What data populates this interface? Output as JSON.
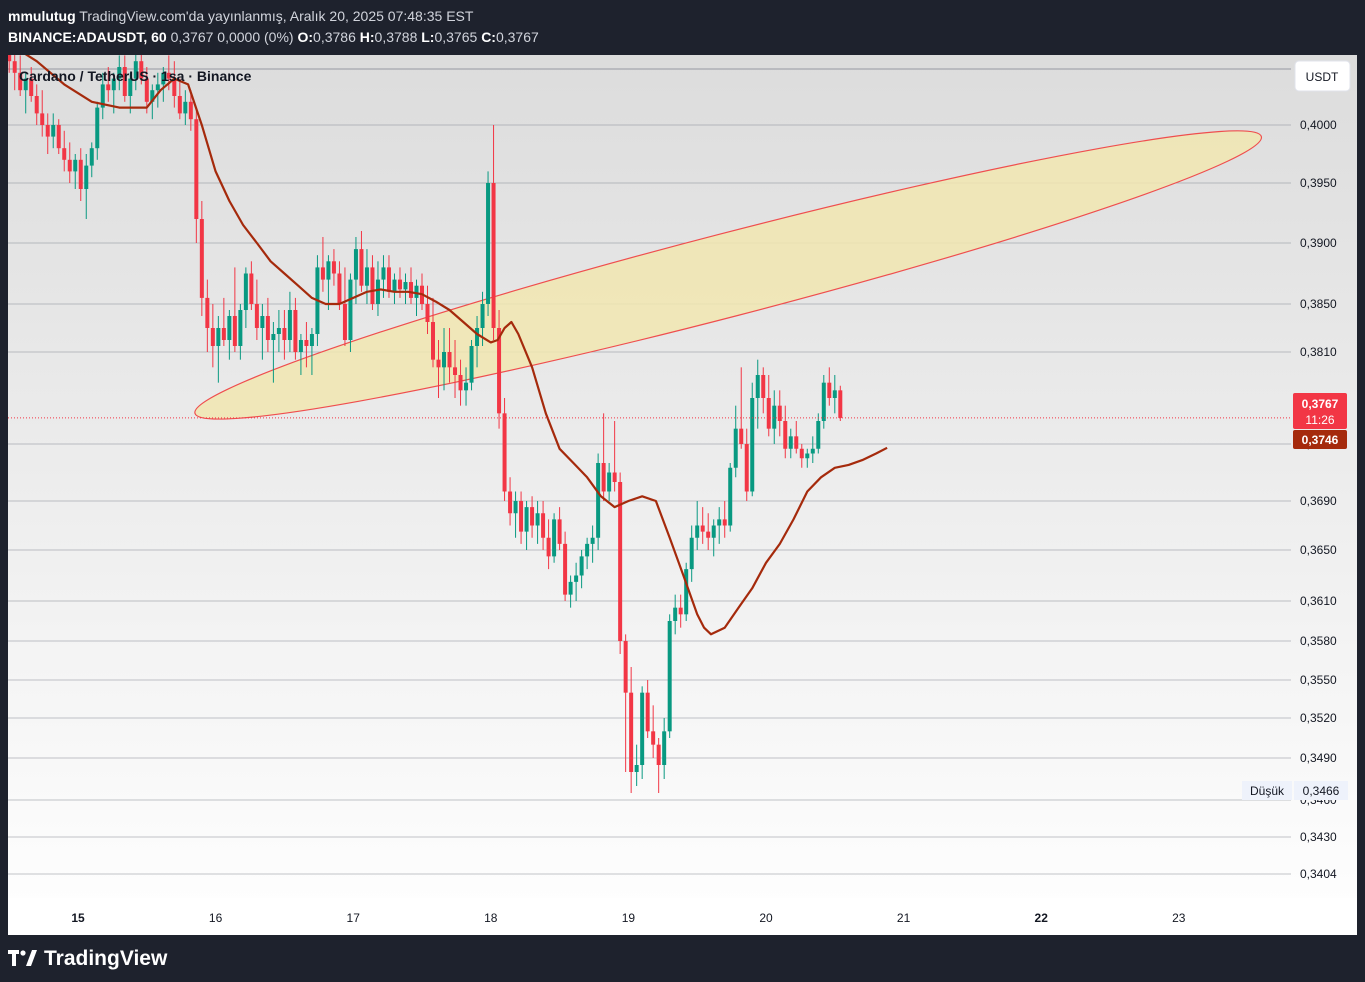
{
  "header": {
    "author": "mmulutug",
    "published": "TradingView.com'da yayınlanmış, Aralık 20, 2025 07:48:35 EST",
    "symbol": "BINANCE:ADAUSDT, 60",
    "last": "0,3767",
    "change": "0,0000 (0%)",
    "o_label": "O:",
    "o": "0,3786",
    "h_label": "H:",
    "h": "0,3788",
    "l_label": "L:",
    "l": "0,3765",
    "c_label": "C:",
    "c": "0,3767"
  },
  "chart_title": "Cardano / TetherUS · 1sa · Binance",
  "currency_button": "USDT",
  "footer": {
    "brand": "TradingView"
  },
  "colors": {
    "up": "#089981",
    "down": "#f23645",
    "ma": "#a52a0c",
    "ellipse_fill": "#f1e6b0",
    "ellipse_stroke": "#ef4e4e"
  },
  "badges": {
    "price": "0,3767",
    "countdown": "11:26",
    "ma": "0,3746",
    "low_label": "Düşük",
    "low_value": "0,3466"
  },
  "chart_data": {
    "type": "candlestick",
    "title": "Cardano / TetherUS · 1sa · Binance",
    "x_ticks": [
      {
        "label": "15",
        "day": 15,
        "bold": true
      },
      {
        "label": "16",
        "day": 16,
        "bold": false
      },
      {
        "label": "17",
        "day": 17,
        "bold": false
      },
      {
        "label": "18",
        "day": 18,
        "bold": false
      },
      {
        "label": "19",
        "day": 19,
        "bold": false
      },
      {
        "label": "20",
        "day": 20,
        "bold": false
      },
      {
        "label": "21",
        "day": 21,
        "bold": false
      },
      {
        "label": "22",
        "day": 22,
        "bold": true
      },
      {
        "label": "23",
        "day": 23,
        "bold": false
      }
    ],
    "y_ticks": [
      {
        "label": "0,4000",
        "value": 0.4
      },
      {
        "label": "0,3950",
        "value": 0.395
      },
      {
        "label": "0,3900",
        "value": 0.39
      },
      {
        "label": "0,3850",
        "value": 0.385
      },
      {
        "label": "0,3810",
        "value": 0.381
      },
      {
        "label": "0,3750",
        "value": 0.375
      },
      {
        "label": "0,3690",
        "value": 0.369
      },
      {
        "label": "0,3650",
        "value": 0.365
      },
      {
        "label": "0,3610",
        "value": 0.361
      },
      {
        "label": "0,3580",
        "value": 0.358
      },
      {
        "label": "0,3550",
        "value": 0.355
      },
      {
        "label": "0,3520",
        "value": 0.352
      },
      {
        "label": "0,3490",
        "value": 0.349
      },
      {
        "label": "0,3460",
        "value": 0.346
      },
      {
        "label": "0,3430",
        "value": 0.343
      },
      {
        "label": "0,3404",
        "value": 0.3404
      }
    ],
    "current_price": 0.3767,
    "low_price": 0.3466,
    "ma_current": 0.3746,
    "ellipse": {
      "day_left": 15.85,
      "value_left": 0.377,
      "day_right": 23.6,
      "value_right": 0.399,
      "half_width_value": 0.0014
    },
    "candles": [
      [
        14.5,
        0.4065,
        0.408,
        0.4045,
        0.4055
      ],
      [
        14.54,
        0.4055,
        0.407,
        0.403,
        0.4045
      ],
      [
        14.58,
        0.4045,
        0.406,
        0.4025,
        0.403
      ],
      [
        14.62,
        0.403,
        0.4045,
        0.401,
        0.404
      ],
      [
        14.66,
        0.404,
        0.405,
        0.402,
        0.4025
      ],
      [
        14.7,
        0.4025,
        0.4035,
        0.4,
        0.401
      ],
      [
        14.74,
        0.401,
        0.403,
        0.399,
        0.4
      ],
      [
        14.78,
        0.4,
        0.401,
        0.3975,
        0.399
      ],
      [
        14.82,
        0.399,
        0.401,
        0.398,
        0.4
      ],
      [
        14.86,
        0.4,
        0.4005,
        0.3975,
        0.398
      ],
      [
        14.9,
        0.398,
        0.3995,
        0.396,
        0.397
      ],
      [
        14.94,
        0.397,
        0.3985,
        0.395,
        0.396
      ],
      [
        14.98,
        0.396,
        0.3975,
        0.3945,
        0.397
      ],
      [
        15.02,
        0.397,
        0.398,
        0.3935,
        0.3945
      ],
      [
        15.06,
        0.3945,
        0.3975,
        0.392,
        0.3965
      ],
      [
        15.1,
        0.3965,
        0.3985,
        0.3955,
        0.398
      ],
      [
        15.14,
        0.398,
        0.402,
        0.397,
        0.4015
      ],
      [
        15.18,
        0.4015,
        0.4045,
        0.4005,
        0.4035
      ],
      [
        15.22,
        0.4035,
        0.405,
        0.402,
        0.403
      ],
      [
        15.26,
        0.403,
        0.4045,
        0.401,
        0.404
      ],
      [
        15.3,
        0.404,
        0.406,
        0.403,
        0.405
      ],
      [
        15.34,
        0.405,
        0.406,
        0.402,
        0.4025
      ],
      [
        15.38,
        0.4025,
        0.4045,
        0.401,
        0.404
      ],
      [
        15.42,
        0.404,
        0.4065,
        0.403,
        0.4055
      ],
      [
        15.46,
        0.4055,
        0.4065,
        0.4035,
        0.404
      ],
      [
        15.5,
        0.404,
        0.405,
        0.401,
        0.402
      ],
      [
        15.54,
        0.402,
        0.4035,
        0.4005,
        0.403
      ],
      [
        15.58,
        0.403,
        0.4045,
        0.4015,
        0.4035
      ],
      [
        15.62,
        0.4035,
        0.405,
        0.402,
        0.4045
      ],
      [
        15.66,
        0.4045,
        0.406,
        0.403,
        0.404
      ],
      [
        15.7,
        0.404,
        0.4055,
        0.4015,
        0.4025
      ],
      [
        15.74,
        0.4025,
        0.404,
        0.4005,
        0.401
      ],
      [
        15.78,
        0.401,
        0.403,
        0.4,
        0.402
      ],
      [
        15.82,
        0.402,
        0.403,
        0.3995,
        0.4005
      ],
      [
        15.86,
        0.4005,
        0.4015,
        0.39,
        0.392
      ],
      [
        15.9,
        0.392,
        0.3935,
        0.384,
        0.3855
      ],
      [
        15.94,
        0.3855,
        0.387,
        0.381,
        0.383
      ],
      [
        15.98,
        0.383,
        0.385,
        0.38,
        0.3815
      ],
      [
        16.02,
        0.3815,
        0.384,
        0.379,
        0.383
      ],
      [
        16.06,
        0.383,
        0.3855,
        0.3815,
        0.382
      ],
      [
        16.1,
        0.382,
        0.3845,
        0.3805,
        0.384
      ],
      [
        16.14,
        0.384,
        0.388,
        0.381,
        0.3815
      ],
      [
        16.18,
        0.3815,
        0.385,
        0.3805,
        0.3845
      ],
      [
        16.22,
        0.3845,
        0.388,
        0.383,
        0.3875
      ],
      [
        16.26,
        0.3875,
        0.3885,
        0.3845,
        0.385
      ],
      [
        16.3,
        0.385,
        0.387,
        0.382,
        0.383
      ],
      [
        16.34,
        0.383,
        0.385,
        0.3805,
        0.384
      ],
      [
        16.38,
        0.384,
        0.3855,
        0.381,
        0.382
      ],
      [
        16.42,
        0.382,
        0.3835,
        0.379,
        0.3825
      ],
      [
        16.46,
        0.3825,
        0.3845,
        0.381,
        0.383
      ],
      [
        16.5,
        0.383,
        0.3845,
        0.3805,
        0.382
      ],
      [
        16.54,
        0.382,
        0.386,
        0.381,
        0.3845
      ],
      [
        16.58,
        0.3845,
        0.3855,
        0.3805,
        0.381
      ],
      [
        16.62,
        0.381,
        0.3825,
        0.3795,
        0.382
      ],
      [
        16.66,
        0.382,
        0.3835,
        0.38,
        0.3815
      ],
      [
        16.7,
        0.3815,
        0.383,
        0.3795,
        0.3825
      ],
      [
        16.74,
        0.3825,
        0.389,
        0.3815,
        0.388
      ],
      [
        16.78,
        0.388,
        0.3905,
        0.386,
        0.387
      ],
      [
        16.82,
        0.387,
        0.389,
        0.3845,
        0.3885
      ],
      [
        16.86,
        0.3885,
        0.3895,
        0.3865,
        0.3875
      ],
      [
        16.9,
        0.3875,
        0.3885,
        0.3845,
        0.385
      ],
      [
        16.94,
        0.385,
        0.388,
        0.3815,
        0.382
      ],
      [
        16.98,
        0.382,
        0.3875,
        0.381,
        0.387
      ],
      [
        17.02,
        0.387,
        0.3905,
        0.385,
        0.3895
      ],
      [
        17.06,
        0.3895,
        0.391,
        0.386,
        0.3865
      ],
      [
        17.1,
        0.3865,
        0.3895,
        0.385,
        0.388
      ],
      [
        17.14,
        0.388,
        0.389,
        0.3845,
        0.385
      ],
      [
        17.18,
        0.385,
        0.3885,
        0.384,
        0.387
      ],
      [
        17.22,
        0.387,
        0.389,
        0.3855,
        0.388
      ],
      [
        17.26,
        0.388,
        0.389,
        0.3855,
        0.386
      ],
      [
        17.3,
        0.386,
        0.3875,
        0.385,
        0.387
      ],
      [
        17.34,
        0.387,
        0.388,
        0.3855,
        0.3862
      ],
      [
        17.38,
        0.3862,
        0.3875,
        0.385,
        0.3868
      ],
      [
        17.42,
        0.3868,
        0.388,
        0.385,
        0.3855
      ],
      [
        17.46,
        0.3855,
        0.387,
        0.384,
        0.3865
      ],
      [
        17.5,
        0.3865,
        0.3875,
        0.3845,
        0.385
      ],
      [
        17.54,
        0.385,
        0.3865,
        0.3825,
        0.3835
      ],
      [
        17.58,
        0.3835,
        0.3855,
        0.38,
        0.3805
      ],
      [
        17.62,
        0.3805,
        0.382,
        0.378,
        0.38
      ],
      [
        17.66,
        0.38,
        0.383,
        0.3785,
        0.381
      ],
      [
        17.7,
        0.381,
        0.383,
        0.379,
        0.38
      ],
      [
        17.74,
        0.38,
        0.382,
        0.378,
        0.3795
      ],
      [
        17.78,
        0.3795,
        0.3805,
        0.3775,
        0.3785
      ],
      [
        17.82,
        0.3785,
        0.38,
        0.3775,
        0.379
      ],
      [
        17.86,
        0.379,
        0.382,
        0.3785,
        0.3815
      ],
      [
        17.9,
        0.3815,
        0.384,
        0.38,
        0.383
      ],
      [
        17.94,
        0.383,
        0.386,
        0.3815,
        0.385
      ],
      [
        17.98,
        0.385,
        0.396,
        0.384,
        0.395
      ],
      [
        18.02,
        0.395,
        0.4,
        0.382,
        0.383
      ],
      [
        18.06,
        0.383,
        0.3845,
        0.376,
        0.377
      ],
      [
        18.1,
        0.377,
        0.378,
        0.369,
        0.37
      ],
      [
        18.14,
        0.37,
        0.3715,
        0.367,
        0.368
      ],
      [
        18.18,
        0.368,
        0.37,
        0.366,
        0.369
      ],
      [
        18.22,
        0.369,
        0.37,
        0.3655,
        0.3665
      ],
      [
        18.26,
        0.3665,
        0.369,
        0.365,
        0.3685
      ],
      [
        18.3,
        0.3685,
        0.3695,
        0.366,
        0.367
      ],
      [
        18.34,
        0.367,
        0.369,
        0.3655,
        0.368
      ],
      [
        18.38,
        0.368,
        0.369,
        0.365,
        0.366
      ],
      [
        18.42,
        0.366,
        0.3675,
        0.3635,
        0.3645
      ],
      [
        18.46,
        0.3645,
        0.368,
        0.364,
        0.3675
      ],
      [
        18.5,
        0.3675,
        0.3685,
        0.365,
        0.3655
      ],
      [
        18.54,
        0.3655,
        0.3665,
        0.361,
        0.3615
      ],
      [
        18.58,
        0.3615,
        0.363,
        0.3605,
        0.3625
      ],
      [
        18.62,
        0.3625,
        0.364,
        0.361,
        0.363
      ],
      [
        18.66,
        0.363,
        0.365,
        0.362,
        0.3645
      ],
      [
        18.7,
        0.3645,
        0.366,
        0.3635,
        0.3655
      ],
      [
        18.74,
        0.3655,
        0.367,
        0.364,
        0.366
      ],
      [
        18.78,
        0.366,
        0.374,
        0.365,
        0.373
      ],
      [
        18.82,
        0.373,
        0.377,
        0.369,
        0.37
      ],
      [
        18.86,
        0.37,
        0.373,
        0.369,
        0.372
      ],
      [
        18.9,
        0.372,
        0.3765,
        0.37,
        0.371
      ],
      [
        18.94,
        0.371,
        0.372,
        0.357,
        0.358
      ],
      [
        18.98,
        0.358,
        0.3585,
        0.348,
        0.354
      ],
      [
        19.02,
        0.354,
        0.356,
        0.3465,
        0.348
      ],
      [
        19.06,
        0.348,
        0.35,
        0.347,
        0.3485
      ],
      [
        19.1,
        0.3485,
        0.3545,
        0.3475,
        0.354
      ],
      [
        19.14,
        0.354,
        0.355,
        0.3505,
        0.351
      ],
      [
        19.18,
        0.351,
        0.353,
        0.349,
        0.35
      ],
      [
        19.22,
        0.35,
        0.3505,
        0.3465,
        0.3485
      ],
      [
        19.26,
        0.3485,
        0.352,
        0.3475,
        0.351
      ],
      [
        19.3,
        0.351,
        0.36,
        0.3505,
        0.3595
      ],
      [
        19.34,
        0.3595,
        0.3615,
        0.3585,
        0.3605
      ],
      [
        19.38,
        0.3605,
        0.3615,
        0.359,
        0.36
      ],
      [
        19.42,
        0.36,
        0.364,
        0.3595,
        0.3635
      ],
      [
        19.46,
        0.3635,
        0.367,
        0.3625,
        0.366
      ],
      [
        19.5,
        0.366,
        0.369,
        0.365,
        0.367
      ],
      [
        19.54,
        0.367,
        0.3685,
        0.3655,
        0.3665
      ],
      [
        19.58,
        0.3665,
        0.368,
        0.365,
        0.366
      ],
      [
        19.62,
        0.366,
        0.3675,
        0.3645,
        0.367
      ],
      [
        19.66,
        0.367,
        0.3685,
        0.3655,
        0.3675
      ],
      [
        19.7,
        0.3675,
        0.369,
        0.366,
        0.367
      ],
      [
        19.74,
        0.367,
        0.373,
        0.3665,
        0.3725
      ],
      [
        19.78,
        0.3725,
        0.3775,
        0.3715,
        0.376
      ],
      [
        19.82,
        0.376,
        0.38,
        0.3745,
        0.375
      ],
      [
        19.86,
        0.375,
        0.376,
        0.369,
        0.37
      ],
      [
        19.9,
        0.37,
        0.379,
        0.3695,
        0.378
      ],
      [
        19.94,
        0.378,
        0.3805,
        0.376,
        0.3795
      ],
      [
        19.98,
        0.3795,
        0.38,
        0.377,
        0.378
      ],
      [
        20.02,
        0.378,
        0.3795,
        0.3755,
        0.376
      ],
      [
        20.06,
        0.376,
        0.3785,
        0.375,
        0.3775
      ],
      [
        20.1,
        0.3775,
        0.3785,
        0.3755,
        0.3765
      ],
      [
        20.14,
        0.3765,
        0.3775,
        0.3735,
        0.3745
      ],
      [
        20.18,
        0.3745,
        0.376,
        0.3735,
        0.3755
      ],
      [
        20.22,
        0.3755,
        0.3765,
        0.374,
        0.3745
      ],
      [
        20.26,
        0.3745,
        0.375,
        0.3725,
        0.3735
      ],
      [
        20.3,
        0.3735,
        0.3745,
        0.3725,
        0.374
      ],
      [
        20.34,
        0.374,
        0.3755,
        0.373,
        0.3745
      ],
      [
        20.38,
        0.3745,
        0.377,
        0.374,
        0.3765
      ],
      [
        20.42,
        0.3765,
        0.3795,
        0.376,
        0.379
      ],
      [
        20.46,
        0.379,
        0.38,
        0.3775,
        0.378
      ],
      [
        20.5,
        0.378,
        0.3795,
        0.377,
        0.3785
      ],
      [
        20.54,
        0.3785,
        0.3788,
        0.3765,
        0.3767
      ]
    ],
    "ma": [
      [
        14.5,
        0.407
      ],
      [
        14.7,
        0.4055
      ],
      [
        14.9,
        0.4035
      ],
      [
        15.1,
        0.402
      ],
      [
        15.3,
        0.4015
      ],
      [
        15.5,
        0.4015
      ],
      [
        15.6,
        0.403
      ],
      [
        15.7,
        0.404
      ],
      [
        15.8,
        0.4035
      ],
      [
        15.9,
        0.4
      ],
      [
        16.0,
        0.396
      ],
      [
        16.1,
        0.3935
      ],
      [
        16.2,
        0.3915
      ],
      [
        16.3,
        0.39
      ],
      [
        16.4,
        0.3885
      ],
      [
        16.5,
        0.3875
      ],
      [
        16.6,
        0.3865
      ],
      [
        16.7,
        0.3855
      ],
      [
        16.8,
        0.385
      ],
      [
        16.9,
        0.385
      ],
      [
        17.0,
        0.3855
      ],
      [
        17.1,
        0.386
      ],
      [
        17.2,
        0.3862
      ],
      [
        17.3,
        0.386
      ],
      [
        17.4,
        0.386
      ],
      [
        17.5,
        0.3858
      ],
      [
        17.6,
        0.3852
      ],
      [
        17.7,
        0.3845
      ],
      [
        17.8,
        0.3835
      ],
      [
        17.9,
        0.3825
      ],
      [
        18.0,
        0.3818
      ],
      [
        18.05,
        0.382
      ],
      [
        18.1,
        0.383
      ],
      [
        18.15,
        0.3835
      ],
      [
        18.2,
        0.3825
      ],
      [
        18.3,
        0.38
      ],
      [
        18.4,
        0.377
      ],
      [
        18.5,
        0.3745
      ],
      [
        18.6,
        0.373
      ],
      [
        18.7,
        0.3715
      ],
      [
        18.8,
        0.3695
      ],
      [
        18.9,
        0.3685
      ],
      [
        19.0,
        0.369
      ],
      [
        19.1,
        0.3695
      ],
      [
        19.2,
        0.369
      ],
      [
        19.3,
        0.366
      ],
      [
        19.4,
        0.363
      ],
      [
        19.5,
        0.36
      ],
      [
        19.55,
        0.359
      ],
      [
        19.6,
        0.3585
      ],
      [
        19.7,
        0.359
      ],
      [
        19.8,
        0.3605
      ],
      [
        19.9,
        0.362
      ],
      [
        20.0,
        0.364
      ],
      [
        20.1,
        0.3655
      ],
      [
        20.2,
        0.3675
      ],
      [
        20.3,
        0.37
      ],
      [
        20.4,
        0.3715
      ],
      [
        20.5,
        0.3725
      ],
      [
        20.6,
        0.3728
      ],
      [
        20.7,
        0.3733
      ],
      [
        20.8,
        0.374
      ],
      [
        20.88,
        0.3746
      ]
    ]
  }
}
